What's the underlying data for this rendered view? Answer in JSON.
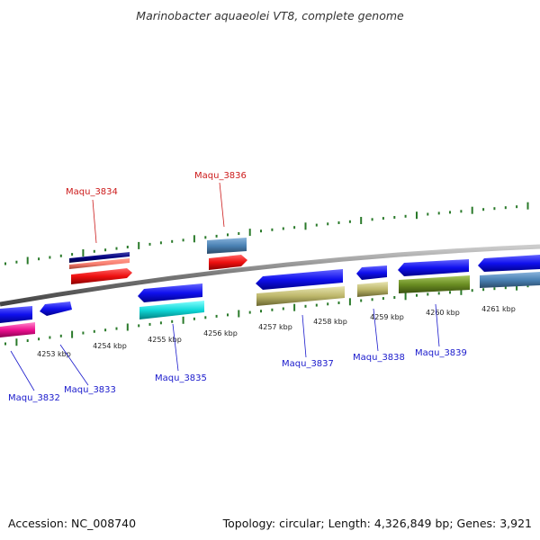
{
  "title": "Marinobacter aquaeolei VT8, complete genome",
  "footer": {
    "accession": "Accession: NC_008740",
    "summary": "Topology: circular; Length: 4,326,849 bp; Genes: 3,921"
  },
  "scale_labels": [
    "4253 kbp",
    "4254 kbp",
    "4255 kbp",
    "4256 kbp",
    "4257 kbp",
    "4258 kbp",
    "4259 kbp",
    "4260 kbp",
    "4261 kbp"
  ],
  "genes": [
    {
      "name": "Maqu_3832",
      "strand": "reverse",
      "label_color": "#1a1acc"
    },
    {
      "name": "Maqu_3833",
      "strand": "reverse",
      "label_color": "#1a1acc"
    },
    {
      "name": "Maqu_3834",
      "strand": "forward",
      "label_color": "#cc1a1a"
    },
    {
      "name": "Maqu_3835",
      "strand": "reverse",
      "label_color": "#1a1acc"
    },
    {
      "name": "Maqu_3836",
      "strand": "forward",
      "label_color": "#cc1a1a"
    },
    {
      "name": "Maqu_3837",
      "strand": "reverse",
      "label_color": "#1a1acc"
    },
    {
      "name": "Maqu_3838",
      "strand": "reverse",
      "label_color": "#1a1acc"
    },
    {
      "name": "Maqu_3839",
      "strand": "reverse",
      "label_color": "#1a1acc"
    }
  ],
  "colors": {
    "backbone": "#888888",
    "tick": "#2a7a2a",
    "cds": "#1010ee",
    "forward_label": "#cc1a1a",
    "reverse_label": "#1a1acc"
  }
}
